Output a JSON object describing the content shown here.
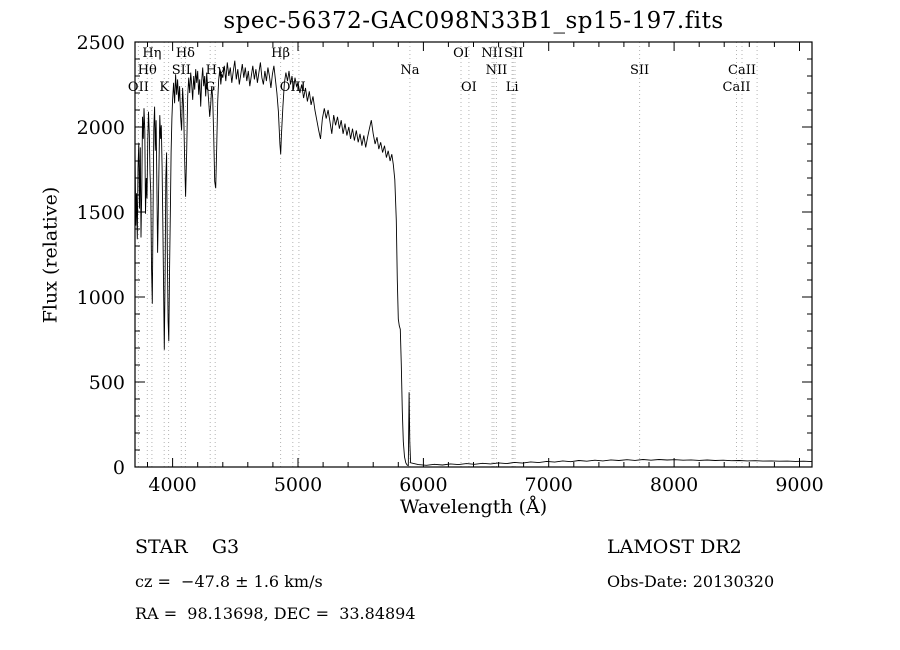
{
  "title": "spec-56372-GAC098N33B1_sp15-197.fits",
  "footer": {
    "class_label": "STAR    G3",
    "survey": "LAMOST DR2",
    "cz": "cz =  −47.8 ± 1.6 km/s",
    "obs_date": "Obs-Date: 20130320",
    "radec": "RA =  98.13698, DEC =  33.84894"
  },
  "chart_data": {
    "type": "line",
    "title": "spec-56372-GAC098N33B1_sp15-197.fits",
    "xlabel": "Wavelength (Å)",
    "ylabel": "Flux (relative)",
    "xlim": [
      3700,
      9100
    ],
    "ylim": [
      0,
      2500
    ],
    "x_major_ticks": [
      4000,
      5000,
      6000,
      7000,
      8000,
      9000
    ],
    "y_major_ticks": [
      0,
      500,
      1000,
      1500,
      2000,
      2500
    ],
    "grid": false,
    "legend": "none",
    "line_color": "#000000",
    "marker_line_color": "#b3b3b3",
    "line_markers": [
      {
        "label": "Hη",
        "wavelength": 3835,
        "row": 0
      },
      {
        "label": "Hδ",
        "wavelength": 4102,
        "row": 0
      },
      {
        "label": "Hβ",
        "wavelength": 4861,
        "row": 0
      },
      {
        "label": "OI",
        "wavelength": 6300,
        "row": 0
      },
      {
        "label": "NII",
        "wavelength": 6548,
        "row": 0
      },
      {
        "label": "SII",
        "wavelength": 6721,
        "row": 0
      },
      {
        "label": "Hθ",
        "wavelength": 3798,
        "row": 1
      },
      {
        "label": "SII",
        "wavelength": 4069,
        "row": 1
      },
      {
        "label": "Hγ",
        "wavelength": 4340,
        "row": 1
      },
      {
        "label": "Na",
        "wavelength": 5893,
        "row": 1
      },
      {
        "label": "NII",
        "wavelength": 6583,
        "row": 1
      },
      {
        "label": "SII",
        "wavelength": 7725,
        "row": 1
      },
      {
        "label": "CaII",
        "wavelength": 8542,
        "row": 1
      },
      {
        "label": "OII",
        "wavelength": 3727,
        "row": 2
      },
      {
        "label": "K",
        "wavelength": 3933,
        "row": 2
      },
      {
        "label": "G",
        "wavelength": 4300,
        "row": 2
      },
      {
        "label": "OIII",
        "wavelength": 4959,
        "row": 2
      },
      {
        "label": "OI",
        "wavelength": 6363,
        "row": 2
      },
      {
        "label": "Li",
        "wavelength": 6708,
        "row": 2
      },
      {
        "label": "CaII",
        "wavelength": 8498,
        "row": 2
      }
    ],
    "marker_lines": [
      3727,
      3798,
      3835,
      3933,
      3968,
      4069,
      4102,
      4300,
      4340,
      4861,
      4959,
      5007,
      5893,
      6300,
      6363,
      6548,
      6563,
      6583,
      6708,
      6717,
      6731,
      7725,
      8498,
      8542,
      8662
    ],
    "series": [
      {
        "name": "flux",
        "points": [
          [
            3700,
            1870
          ],
          [
            3706,
            1420
          ],
          [
            3712,
            1610
          ],
          [
            3718,
            1340
          ],
          [
            3724,
            1760
          ],
          [
            3730,
            1905
          ],
          [
            3736,
            1520
          ],
          [
            3742,
            1880
          ],
          [
            3748,
            1350
          ],
          [
            3754,
            1640
          ],
          [
            3760,
            2060
          ],
          [
            3766,
            1930
          ],
          [
            3772,
            2110
          ],
          [
            3778,
            1980
          ],
          [
            3784,
            1490
          ],
          [
            3790,
            1700
          ],
          [
            3796,
            1580
          ],
          [
            3802,
            1930
          ],
          [
            3808,
            2090
          ],
          [
            3814,
            1960
          ],
          [
            3820,
            1730
          ],
          [
            3826,
            1610
          ],
          [
            3832,
            1180
          ],
          [
            3838,
            960
          ],
          [
            3844,
            1530
          ],
          [
            3850,
            1990
          ],
          [
            3856,
            2120
          ],
          [
            3862,
            1860
          ],
          [
            3868,
            2040
          ],
          [
            3874,
            1700
          ],
          [
            3880,
            1260
          ],
          [
            3886,
            1490
          ],
          [
            3892,
            1820
          ],
          [
            3898,
            2070
          ],
          [
            3904,
            1930
          ],
          [
            3910,
            2010
          ],
          [
            3916,
            1760
          ],
          [
            3922,
            1450
          ],
          [
            3928,
            1050
          ],
          [
            3934,
            690
          ],
          [
            3940,
            1120
          ],
          [
            3946,
            1700
          ],
          [
            3952,
            1850
          ],
          [
            3958,
            1280
          ],
          [
            3964,
            860
          ],
          [
            3970,
            740
          ],
          [
            3976,
            1180
          ],
          [
            3982,
            1520
          ],
          [
            3988,
            1850
          ],
          [
            3994,
            2050
          ],
          [
            4000,
            2160
          ],
          [
            4008,
            2260
          ],
          [
            4016,
            2140
          ],
          [
            4024,
            2310
          ],
          [
            4032,
            2190
          ],
          [
            4040,
            2280
          ],
          [
            4048,
            2150
          ],
          [
            4056,
            2240
          ],
          [
            4064,
            2060
          ],
          [
            4072,
            1980
          ],
          [
            4080,
            2230
          ],
          [
            4088,
            2110
          ],
          [
            4096,
            1820
          ],
          [
            4104,
            1590
          ],
          [
            4112,
            1860
          ],
          [
            4120,
            2180
          ],
          [
            4128,
            2290
          ],
          [
            4136,
            2200
          ],
          [
            4144,
            2320
          ],
          [
            4152,
            2250
          ],
          [
            4160,
            2160
          ],
          [
            4168,
            2300
          ],
          [
            4176,
            2220
          ],
          [
            4184,
            2340
          ],
          [
            4192,
            2260
          ],
          [
            4200,
            2330
          ],
          [
            4208,
            2190
          ],
          [
            4216,
            2280
          ],
          [
            4224,
            2120
          ],
          [
            4232,
            2270
          ],
          [
            4240,
            2350
          ],
          [
            4248,
            2240
          ],
          [
            4256,
            2300
          ],
          [
            4264,
            2180
          ],
          [
            4272,
            2320
          ],
          [
            4280,
            2230
          ],
          [
            4288,
            2150
          ],
          [
            4296,
            2060
          ],
          [
            4304,
            2130
          ],
          [
            4312,
            2240
          ],
          [
            4320,
            2170
          ],
          [
            4328,
            1950
          ],
          [
            4336,
            1680
          ],
          [
            4344,
            1640
          ],
          [
            4352,
            1880
          ],
          [
            4360,
            2150
          ],
          [
            4368,
            2280
          ],
          [
            4376,
            2340
          ],
          [
            4384,
            2250
          ],
          [
            4392,
            2310
          ],
          [
            4400,
            2290
          ],
          [
            4412,
            2360
          ],
          [
            4424,
            2270
          ],
          [
            4436,
            2380
          ],
          [
            4448,
            2300
          ],
          [
            4460,
            2350
          ],
          [
            4472,
            2260
          ],
          [
            4484,
            2330
          ],
          [
            4496,
            2390
          ],
          [
            4508,
            2280
          ],
          [
            4520,
            2340
          ],
          [
            4532,
            2250
          ],
          [
            4544,
            2310
          ],
          [
            4556,
            2370
          ],
          [
            4568,
            2290
          ],
          [
            4580,
            2350
          ],
          [
            4592,
            2270
          ],
          [
            4604,
            2330
          ],
          [
            4616,
            2240
          ],
          [
            4628,
            2300
          ],
          [
            4640,
            2360
          ],
          [
            4652,
            2280
          ],
          [
            4664,
            2340
          ],
          [
            4676,
            2260
          ],
          [
            4688,
            2320
          ],
          [
            4700,
            2380
          ],
          [
            4712,
            2290
          ],
          [
            4724,
            2250
          ],
          [
            4736,
            2330
          ],
          [
            4748,
            2270
          ],
          [
            4760,
            2350
          ],
          [
            4772,
            2300
          ],
          [
            4784,
            2230
          ],
          [
            4796,
            2310
          ],
          [
            4808,
            2360
          ],
          [
            4820,
            2280
          ],
          [
            4832,
            2200
          ],
          [
            4844,
            2090
          ],
          [
            4856,
            1900
          ],
          [
            4862,
            1840
          ],
          [
            4868,
            1950
          ],
          [
            4880,
            2120
          ],
          [
            4892,
            2260
          ],
          [
            4904,
            2320
          ],
          [
            4916,
            2270
          ],
          [
            4928,
            2330
          ],
          [
            4940,
            2250
          ],
          [
            4952,
            2300
          ],
          [
            4964,
            2220
          ],
          [
            4976,
            2290
          ],
          [
            4988,
            2240
          ],
          [
            5000,
            2260
          ],
          [
            5015,
            2200
          ],
          [
            5030,
            2250
          ],
          [
            5045,
            2170
          ],
          [
            5060,
            2230
          ],
          [
            5075,
            2150
          ],
          [
            5090,
            2210
          ],
          [
            5105,
            2130
          ],
          [
            5120,
            2180
          ],
          [
            5135,
            2100
          ],
          [
            5150,
            2040
          ],
          [
            5165,
            1980
          ],
          [
            5180,
            1930
          ],
          [
            5195,
            2050
          ],
          [
            5210,
            2110
          ],
          [
            5225,
            2050
          ],
          [
            5240,
            2100
          ],
          [
            5255,
            2030
          ],
          [
            5270,
            1960
          ],
          [
            5285,
            2070
          ],
          [
            5300,
            2010
          ],
          [
            5315,
            2060
          ],
          [
            5330,
            1990
          ],
          [
            5345,
            2040
          ],
          [
            5360,
            1960
          ],
          [
            5375,
            2020
          ],
          [
            5390,
            1950
          ],
          [
            5405,
            2000
          ],
          [
            5420,
            1930
          ],
          [
            5435,
            1990
          ],
          [
            5450,
            1920
          ],
          [
            5465,
            1980
          ],
          [
            5480,
            1910
          ],
          [
            5495,
            1960
          ],
          [
            5510,
            1890
          ],
          [
            5525,
            1950
          ],
          [
            5540,
            1880
          ],
          [
            5555,
            1940
          ],
          [
            5570,
            1990
          ],
          [
            5585,
            2040
          ],
          [
            5600,
            1960
          ],
          [
            5615,
            1900
          ],
          [
            5630,
            1940
          ],
          [
            5645,
            1870
          ],
          [
            5660,
            1910
          ],
          [
            5675,
            1850
          ],
          [
            5690,
            1890
          ],
          [
            5705,
            1820
          ],
          [
            5720,
            1860
          ],
          [
            5735,
            1800
          ],
          [
            5748,
            1840
          ],
          [
            5760,
            1780
          ],
          [
            5772,
            1690
          ],
          [
            5784,
            1450
          ],
          [
            5792,
            1100
          ],
          [
            5800,
            870
          ],
          [
            5808,
            830
          ],
          [
            5816,
            810
          ],
          [
            5824,
            600
          ],
          [
            5832,
            330
          ],
          [
            5840,
            150
          ],
          [
            5850,
            60
          ],
          [
            5860,
            25
          ],
          [
            5870,
            12
          ],
          [
            5880,
            8
          ],
          [
            5886,
            440
          ],
          [
            5892,
            150
          ],
          [
            5898,
            25
          ],
          [
            5960,
            14
          ],
          [
            6024,
            10
          ],
          [
            6088,
            16
          ],
          [
            6152,
            12
          ],
          [
            6216,
            18
          ],
          [
            6280,
            14
          ],
          [
            6344,
            20
          ],
          [
            6408,
            16
          ],
          [
            6472,
            22
          ],
          [
            6536,
            18
          ],
          [
            6600,
            24
          ],
          [
            6664,
            20
          ],
          [
            6728,
            27
          ],
          [
            6792,
            23
          ],
          [
            6856,
            30
          ],
          [
            6920,
            26
          ],
          [
            6984,
            33
          ],
          [
            7048,
            29
          ],
          [
            7112,
            36
          ],
          [
            7176,
            31
          ],
          [
            7240,
            38
          ],
          [
            7304,
            34
          ],
          [
            7368,
            40
          ],
          [
            7432,
            36
          ],
          [
            7496,
            42
          ],
          [
            7560,
            38
          ],
          [
            7624,
            43
          ],
          [
            7688,
            39
          ],
          [
            7752,
            44
          ],
          [
            7816,
            40
          ],
          [
            7880,
            44
          ],
          [
            7944,
            41
          ],
          [
            8008,
            43
          ],
          [
            8072,
            40
          ],
          [
            8136,
            42
          ],
          [
            8200,
            39
          ],
          [
            8264,
            41
          ],
          [
            8328,
            38
          ],
          [
            8392,
            40
          ],
          [
            8456,
            37
          ],
          [
            8520,
            38
          ],
          [
            8584,
            36
          ],
          [
            8648,
            37
          ],
          [
            8712,
            35
          ],
          [
            8776,
            36
          ],
          [
            8840,
            34
          ],
          [
            8904,
            35
          ],
          [
            8968,
            33
          ],
          [
            9032,
            34
          ],
          [
            9096,
            32
          ]
        ]
      }
    ]
  }
}
